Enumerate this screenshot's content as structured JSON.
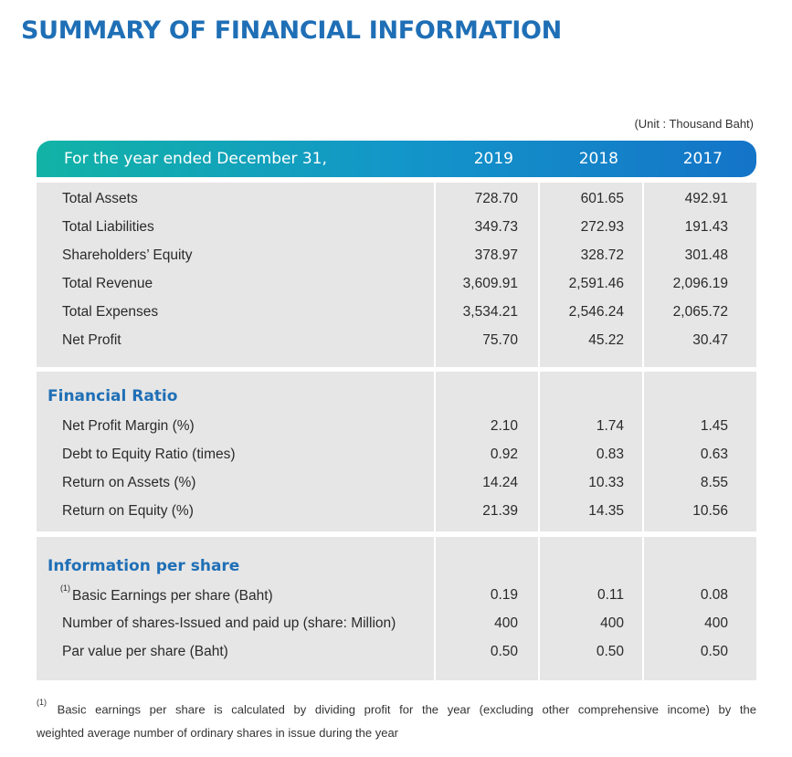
{
  "title": "SUMMARY OF FINANCIAL INFORMATION",
  "unit": "(Unit : Thousand Baht)",
  "header": {
    "label": "For the year ended December 31,",
    "years": [
      "2019",
      "2018",
      "2017"
    ]
  },
  "financials": {
    "rows": [
      {
        "label": "Total Assets",
        "values": [
          "728.70",
          "601.65",
          "492.91"
        ]
      },
      {
        "label": "Total Liabilities",
        "values": [
          "349.73",
          "272.93",
          "191.43"
        ]
      },
      {
        "label": "Shareholders’ Equity",
        "values": [
          "378.97",
          "328.72",
          "301.48"
        ]
      },
      {
        "label": "Total Revenue",
        "values": [
          "3,609.91",
          "2,591.46",
          "2,096.19"
        ]
      },
      {
        "label": "Total Expenses",
        "values": [
          "3,534.21",
          "2,546.24",
          "2,065.72"
        ]
      },
      {
        "label": "Net Profit",
        "values": [
          "75.70",
          "45.22",
          "30.47"
        ]
      }
    ]
  },
  "ratios": {
    "title": "Financial Ratio",
    "rows": [
      {
        "label": "Net Profit Margin (%)",
        "values": [
          "2.10",
          "1.74",
          "1.45"
        ]
      },
      {
        "label": "Debt to Equity Ratio (times)",
        "values": [
          "0.92",
          "0.83",
          "0.63"
        ]
      },
      {
        "label": "Return on Assets (%)",
        "values": [
          "14.24",
          "10.33",
          "8.55"
        ]
      },
      {
        "label": "Return on Equity (%)",
        "values": [
          "21.39",
          "14.35",
          "10.56"
        ]
      }
    ]
  },
  "per_share": {
    "title": "Information per share",
    "footnote_marker": "(1)",
    "rows": [
      {
        "label": "Basic Earnings per share (Baht)",
        "values": [
          "0.19",
          "0.11",
          "0.08"
        ]
      },
      {
        "label": "Number of shares-Issued and paid up (share: Million)",
        "values": [
          "400",
          "400",
          "400"
        ]
      },
      {
        "label": "Par value per share (Baht)",
        "values": [
          "0.50",
          "0.50",
          "0.50"
        ]
      }
    ]
  },
  "footnote": {
    "marker": "(1)",
    "line1": "Basic earnings per share is calculated by dividing profit for the year (excluding other comprehensive income) by the",
    "line2": "weighted average number of ordinary shares in issue during the year"
  }
}
